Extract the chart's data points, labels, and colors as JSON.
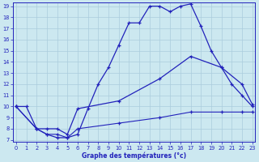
{
  "bg_color": "#cce8f0",
  "line_color": "#2222bb",
  "grid_color": "#aaccdd",
  "xmin": 0,
  "xmax": 23,
  "ymin": 7,
  "ymax": 19,
  "line1_x": [
    0,
    1,
    2,
    3,
    4,
    5,
    6,
    7,
    8,
    9,
    10,
    11,
    12,
    13,
    14,
    15,
    16,
    17,
    18,
    19,
    20,
    21,
    22,
    23
  ],
  "line1_y": [
    10.0,
    10.0,
    8.0,
    7.5,
    7.2,
    7.2,
    7.5,
    9.8,
    12.0,
    13.5,
    15.5,
    17.5,
    17.5,
    19.0,
    19.0,
    18.5,
    19.0,
    19.2,
    17.2,
    15.0,
    13.5,
    12.0,
    11.0,
    10.0
  ],
  "line2_x": [
    0,
    2,
    3,
    4,
    5,
    6,
    10,
    14,
    17,
    20,
    22,
    23
  ],
  "line2_y": [
    10.0,
    8.0,
    8.0,
    8.0,
    7.5,
    9.8,
    10.5,
    12.5,
    14.5,
    13.5,
    12.0,
    10.2
  ],
  "line3_x": [
    0,
    2,
    3,
    4,
    5,
    6,
    10,
    14,
    17,
    20,
    22,
    23
  ],
  "line3_y": [
    10.0,
    8.0,
    7.5,
    7.5,
    7.2,
    8.0,
    8.5,
    9.0,
    9.5,
    9.5,
    9.5,
    9.5
  ],
  "xlabel": "Graphe des températures (°c)"
}
